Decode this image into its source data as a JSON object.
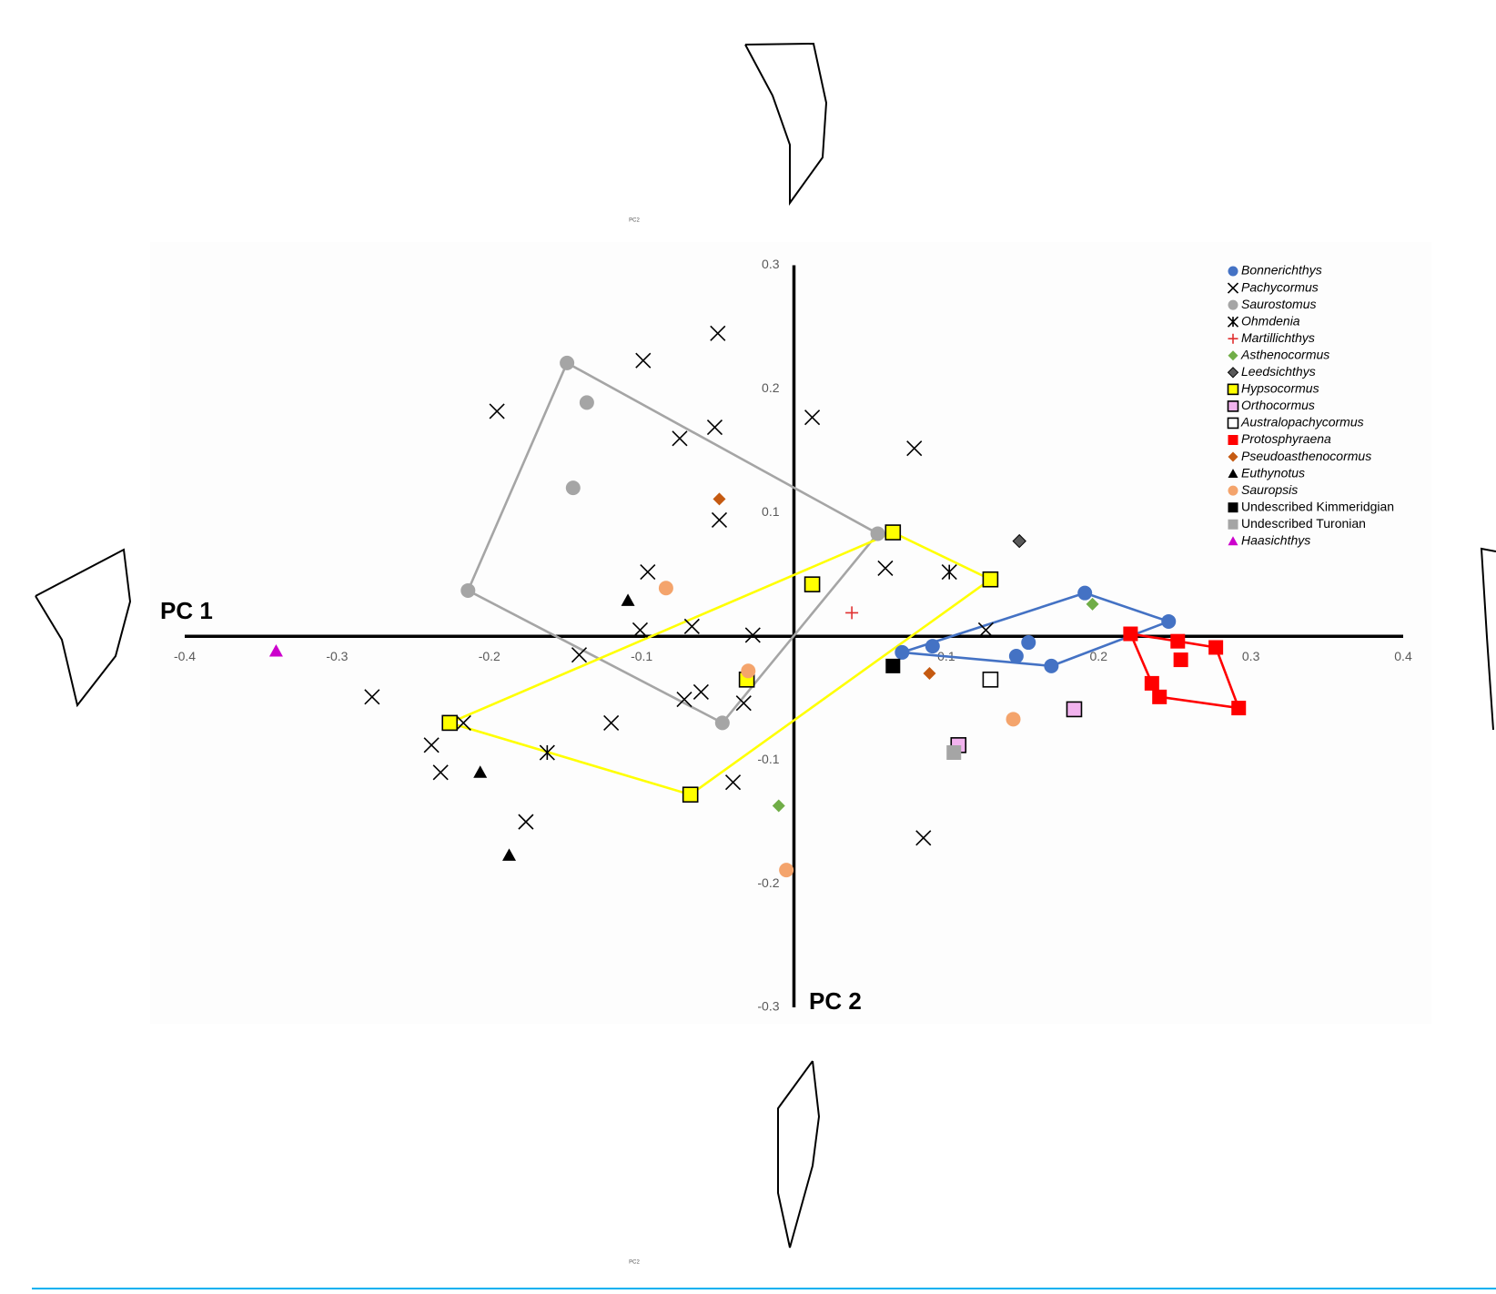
{
  "chart_data": {
    "type": "scatter",
    "xlabel": "PC 1",
    "ylabel": "PC 2",
    "shape_labels": [
      "PC2",
      "PC2"
    ],
    "xlim": [
      -0.4,
      0.4
    ],
    "ylim": [
      -0.3,
      0.3
    ],
    "xticks": [
      -0.4,
      -0.3,
      -0.2,
      -0.1,
      0.1,
      0.2,
      0.3,
      0.4
    ],
    "yticks": [
      0.3,
      0.2,
      0.1,
      -0.1,
      -0.2,
      -0.3
    ],
    "grid": false,
    "legend": "upper right",
    "series": [
      {
        "name": "Bonnerichthys",
        "marker": "circle",
        "color": "#4472c4",
        "italic": true,
        "hull": true,
        "x": [
          0.071,
          0.091,
          0.146,
          0.154,
          0.169,
          0.191,
          0.246
        ],
        "values": [
          -0.013,
          -0.008,
          -0.016,
          -0.005,
          -0.024,
          0.035,
          0.012
        ]
      },
      {
        "name": "Pachycormus",
        "marker": "x",
        "color": "#000000",
        "italic": true,
        "hull": false,
        "x": [
          -0.05,
          -0.099,
          -0.195,
          0.012,
          -0.075,
          -0.052,
          0.079,
          -0.049,
          -0.096,
          0.06,
          -0.101,
          -0.067,
          -0.027,
          -0.141,
          0.126,
          -0.277,
          -0.217,
          -0.12,
          -0.061,
          -0.072,
          -0.033,
          -0.238,
          -0.232,
          -0.04,
          -0.176,
          0.085
        ],
        "values": [
          0.245,
          0.223,
          0.182,
          0.177,
          0.16,
          0.169,
          0.152,
          0.094,
          0.052,
          0.055,
          0.005,
          0.008,
          0.001,
          -0.015,
          0.005,
          -0.049,
          -0.07,
          -0.07,
          -0.045,
          -0.051,
          -0.054,
          -0.088,
          -0.11,
          -0.118,
          -0.15,
          -0.163
        ]
      },
      {
        "name": "Saurostomus",
        "marker": "circle",
        "color": "#a5a5a5",
        "italic": true,
        "hull": true,
        "x": [
          -0.149,
          -0.136,
          -0.145,
          -0.214,
          -0.047,
          0.055
        ],
        "values": [
          0.221,
          0.189,
          0.12,
          0.037,
          -0.07,
          0.083
        ]
      },
      {
        "name": "Ohmdenia",
        "marker": "asterisk",
        "color": "#000000",
        "italic": true,
        "hull": false,
        "x": [
          0.102,
          -0.162
        ],
        "values": [
          0.052,
          -0.094
        ]
      },
      {
        "name": "Martillichthys",
        "marker": "plus",
        "color": "#e03030",
        "italic": true,
        "hull": false,
        "x": [
          0.038
        ],
        "values": [
          0.019
        ]
      },
      {
        "name": "Asthenocormus",
        "marker": "diamond",
        "color": "#70ad47",
        "italic": true,
        "hull": false,
        "x": [
          0.196,
          -0.01
        ],
        "values": [
          0.026,
          -0.137
        ]
      },
      {
        "name": "Leedsichthys",
        "marker": "diamond",
        "color": "#595959",
        "edgecolor": "#000000",
        "italic": true,
        "hull": false,
        "x": [
          0.148
        ],
        "values": [
          0.077
        ]
      },
      {
        "name": "Hypsocormus",
        "marker": "square",
        "color": "#ffff00",
        "edgecolor": "#000000",
        "italic": true,
        "hull": true,
        "x": [
          0.065,
          0.012,
          0.129,
          -0.226,
          -0.068,
          -0.031
        ],
        "values": [
          0.084,
          0.042,
          0.046,
          -0.07,
          -0.128,
          -0.035
        ]
      },
      {
        "name": "Orthocormus",
        "marker": "square",
        "color": "#f2b3ee",
        "edgecolor": "#000000",
        "italic": true,
        "hull": false,
        "x": [
          0.184,
          0.108
        ],
        "values": [
          -0.059,
          -0.088
        ]
      },
      {
        "name": "Australopachycormus",
        "marker": "square",
        "color": "#ffffff",
        "edgecolor": "#000000",
        "italic": true,
        "hull": false,
        "x": [
          0.129
        ],
        "values": [
          -0.035
        ]
      },
      {
        "name": "Protosphyraena",
        "marker": "square",
        "color": "#ff0000",
        "italic": true,
        "hull": true,
        "x": [
          0.221,
          0.252,
          0.254,
          0.235,
          0.24,
          0.277,
          0.292
        ],
        "values": [
          0.002,
          -0.004,
          -0.019,
          -0.038,
          -0.049,
          -0.009,
          -0.058
        ]
      },
      {
        "name": "Pseudoasthenocormus",
        "marker": "diamond",
        "color": "#c55a11",
        "italic": true,
        "hull": false,
        "x": [
          -0.049,
          0.089
        ],
        "values": [
          0.111,
          -0.03
        ]
      },
      {
        "name": "Euthynotus",
        "marker": "triangle",
        "color": "#000000",
        "italic": true,
        "hull": false,
        "x": [
          -0.109,
          -0.206,
          -0.187
        ],
        "values": [
          0.029,
          -0.11,
          -0.177
        ]
      },
      {
        "name": "Sauropsis",
        "marker": "circle",
        "color": "#f4a46c",
        "italic": true,
        "hull": false,
        "x": [
          -0.084,
          -0.03,
          0.144,
          -0.005
        ],
        "values": [
          0.039,
          -0.028,
          -0.067,
          -0.189
        ]
      },
      {
        "name": "Undescribed Kimmeridgian",
        "marker": "square",
        "color": "#000000",
        "italic": false,
        "hull": false,
        "x": [
          0.065
        ],
        "values": [
          -0.024
        ]
      },
      {
        "name": "Undescribed Turonian",
        "marker": "square",
        "color": "#a5a5a5",
        "italic": false,
        "hull": false,
        "x": [
          0.105
        ],
        "values": [
          -0.094
        ]
      },
      {
        "name": "Haasichthys",
        "marker": "triangle",
        "color": "#cc00cc",
        "italic": true,
        "hull": false,
        "x": [
          -0.34
        ],
        "values": [
          -0.012
        ]
      }
    ]
  }
}
